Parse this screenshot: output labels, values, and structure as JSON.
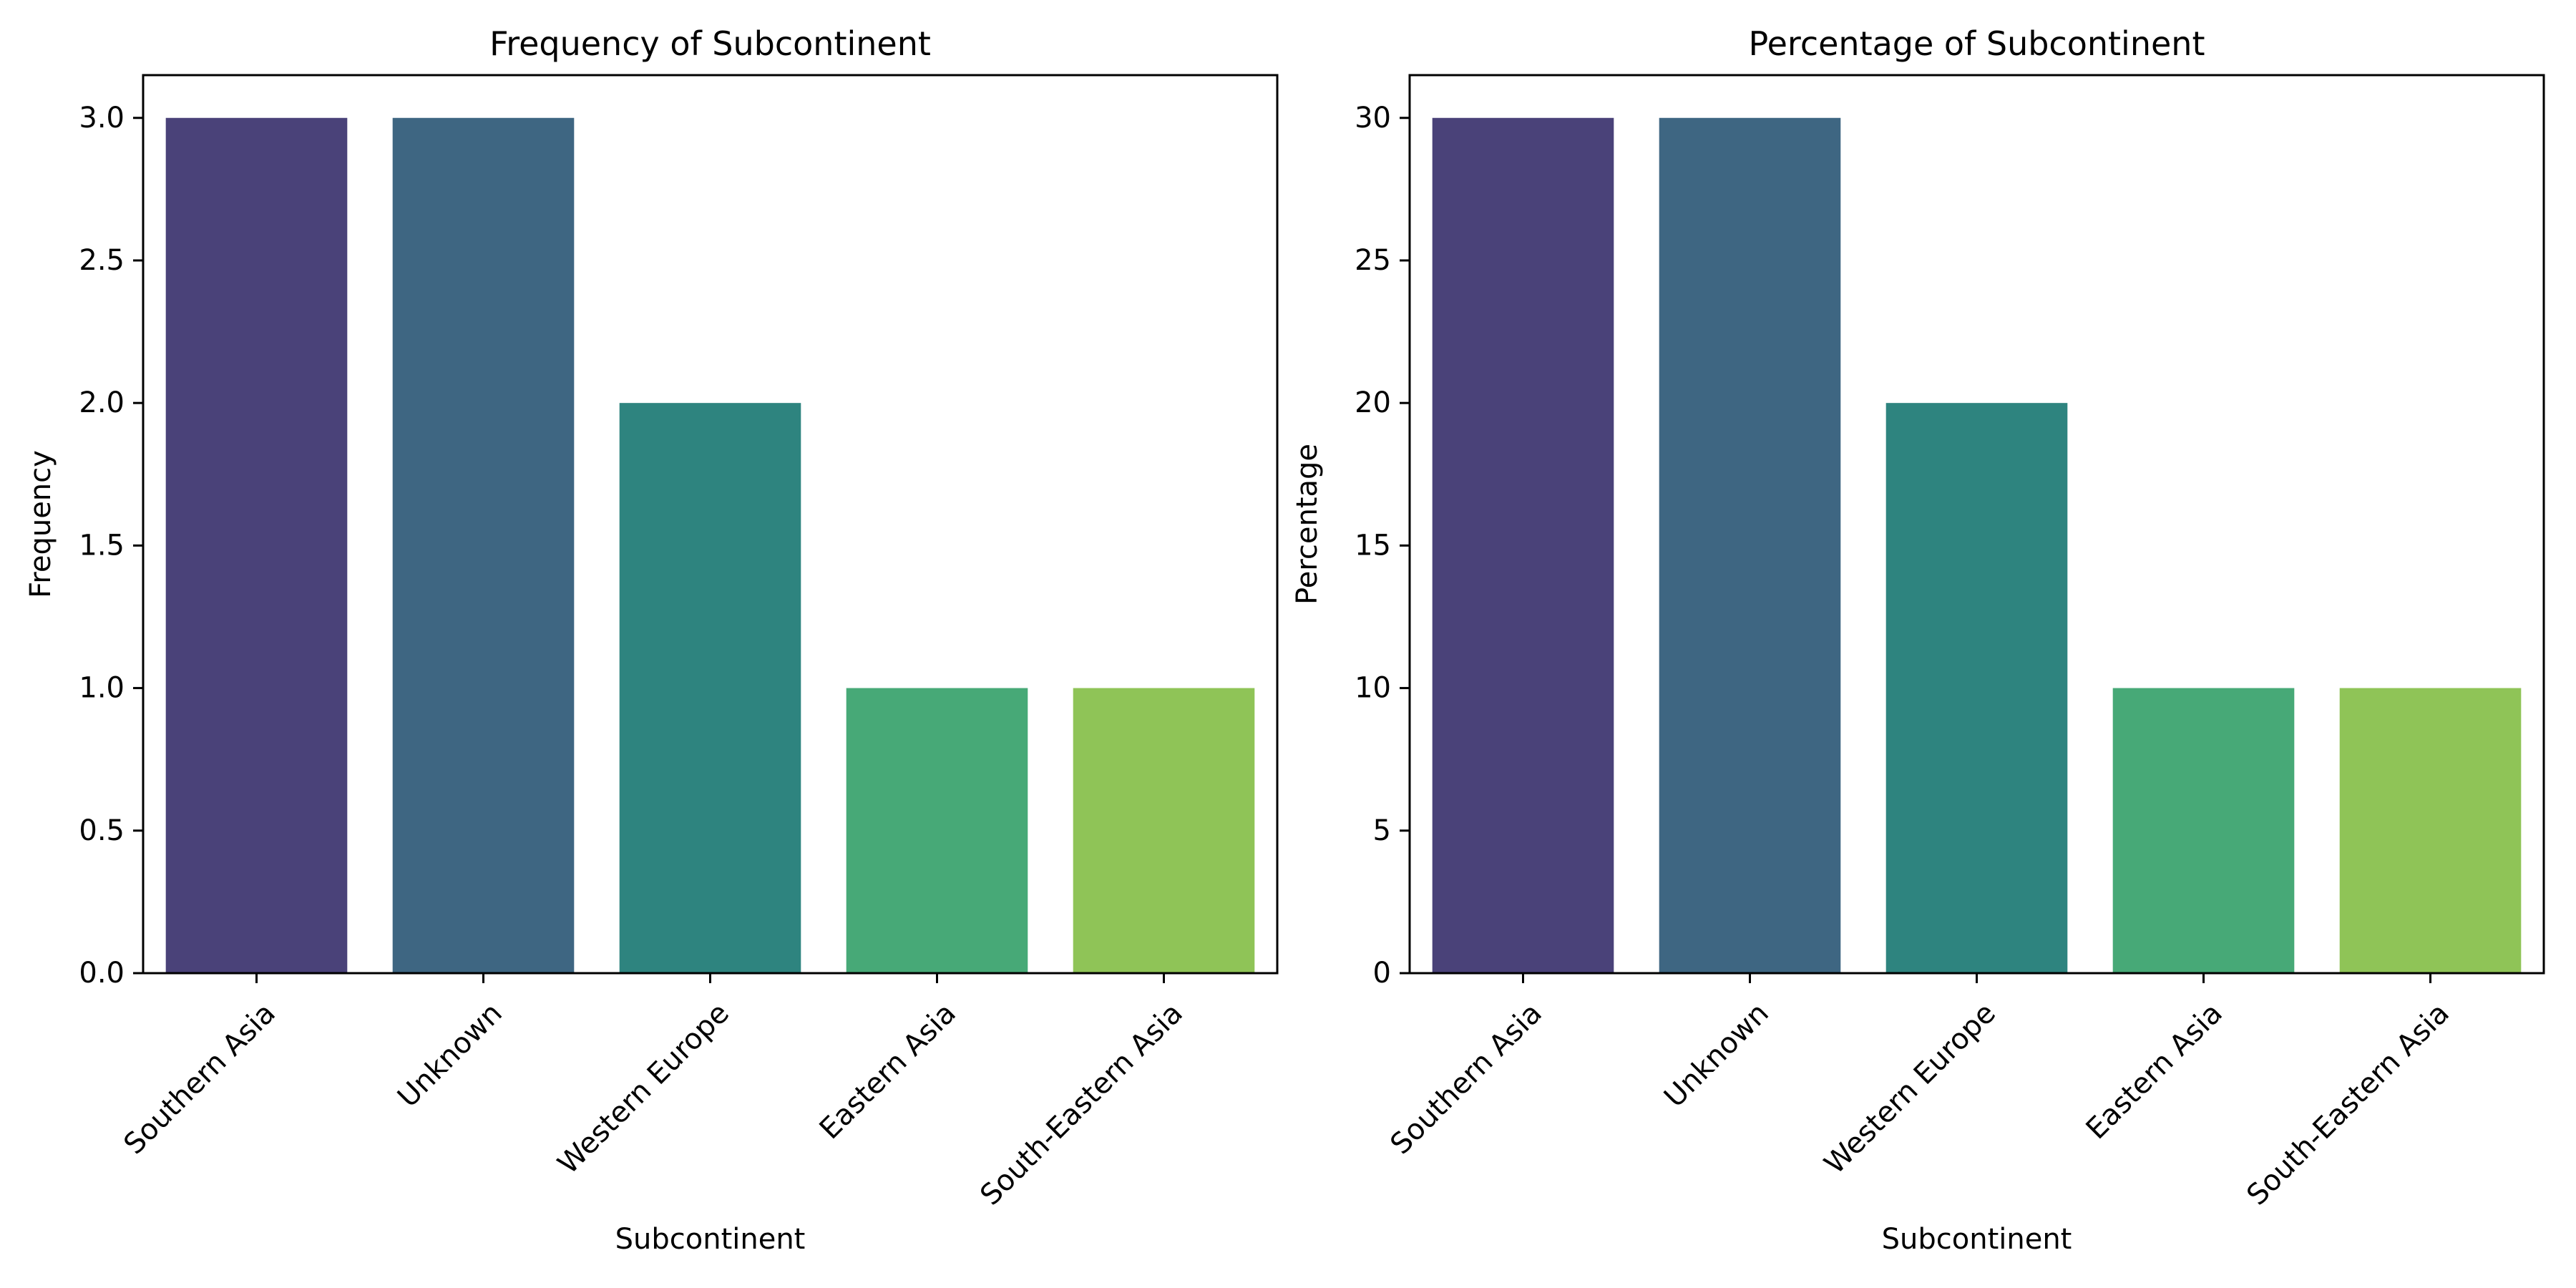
{
  "chart_data": [
    {
      "type": "bar",
      "title": "Frequency of Subcontinent",
      "xlabel": "Subcontinent",
      "ylabel": "Frequency",
      "categories": [
        "Southern Asia",
        "Unknown",
        "Western Europe",
        "Eastern Asia",
        "South-Eastern Asia"
      ],
      "values": [
        3,
        3,
        2,
        1,
        1
      ],
      "ylim": [
        0,
        3.15
      ],
      "yticks": [
        "0.0",
        "0.5",
        "1.0",
        "1.5",
        "2.0",
        "2.5",
        "3.0"
      ],
      "grid": false,
      "colors": [
        "#4a4279",
        "#3e6682",
        "#2e847f",
        "#47a977",
        "#8fc457"
      ]
    },
    {
      "type": "bar",
      "title": "Percentage of Subcontinent",
      "xlabel": "Subcontinent",
      "ylabel": "Percentage",
      "categories": [
        "Southern Asia",
        "Unknown",
        "Western Europe",
        "Eastern Asia",
        "South-Eastern Asia"
      ],
      "values": [
        30,
        30,
        20,
        10,
        10
      ],
      "ylim": [
        0,
        31.5
      ],
      "yticks": [
        "0",
        "5",
        "10",
        "15",
        "20",
        "25",
        "30"
      ],
      "grid": false,
      "colors": [
        "#4a4279",
        "#3e6682",
        "#2e847f",
        "#47a977",
        "#8fc457"
      ]
    }
  ]
}
